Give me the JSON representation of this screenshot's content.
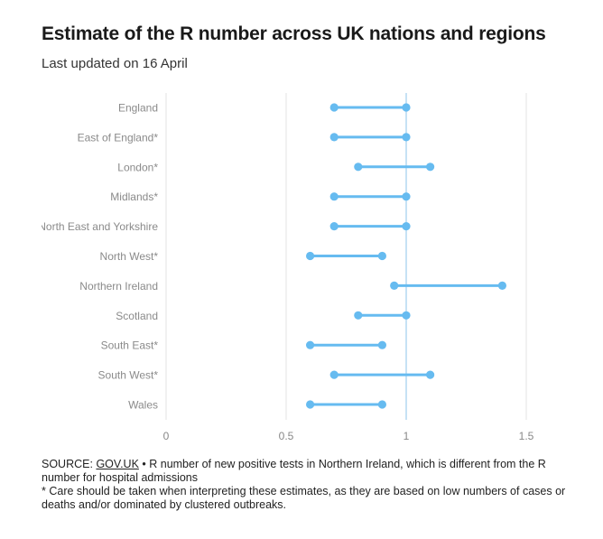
{
  "header": {
    "title": "Estimate of the R number across UK nations and regions",
    "subtitle": "Last updated on 16 April"
  },
  "chart_data": {
    "type": "dumbbell",
    "title": "Estimate of the R number across UK nations and regions",
    "subtitle": "Last updated on 16 April",
    "xlabel": "",
    "ylabel": "",
    "xlim": [
      0,
      1.6
    ],
    "xticks": [
      0,
      0.5,
      1,
      1.5
    ],
    "xtick_labels": [
      "0",
      "0.5",
      "1",
      "1.5"
    ],
    "reference_line": 1,
    "gridlines": true,
    "series_color": "#66bbf0",
    "gridline_color": "#e3e3e3",
    "reference_color": "#b3d9f2",
    "categories": [
      "England",
      "East of England*",
      "London*",
      "Midlands*",
      "North East and Yorkshire",
      "North West*",
      "Northern Ireland",
      "Scotland",
      "South East*",
      "South West*",
      "Wales"
    ],
    "low": [
      0.7,
      0.7,
      0.8,
      0.7,
      0.7,
      0.6,
      0.95,
      0.8,
      0.6,
      0.7,
      0.6
    ],
    "high": [
      1.0,
      1.0,
      1.1,
      1.0,
      1.0,
      0.9,
      1.4,
      1.0,
      0.9,
      1.1,
      0.9
    ]
  },
  "footer": {
    "source_prefix": "SOURCE: ",
    "source_link": "GOV.UK",
    "source_note": " • R number of new positive tests in Northern Ireland, which is different from the R number for hospital admissions",
    "caveat": "* Care should be taken when interpreting these estimates, as they are based on low numbers of cases or deaths and/or dominated by clustered outbreaks."
  }
}
